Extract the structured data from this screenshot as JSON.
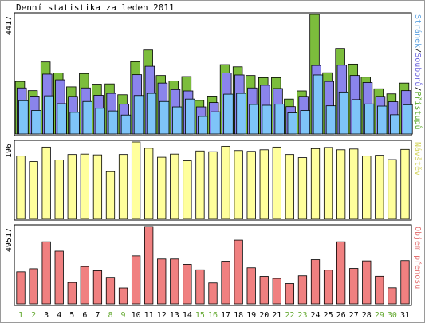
{
  "chart_data": {
    "type": "bar",
    "title": "Denní statistika za leden 2011",
    "categories": [
      "1",
      "2",
      "3",
      "4",
      "5",
      "6",
      "7",
      "8",
      "9",
      "10",
      "11",
      "12",
      "13",
      "14",
      "15",
      "16",
      "17",
      "18",
      "19",
      "20",
      "21",
      "22",
      "23",
      "24",
      "25",
      "26",
      "27",
      "28",
      "29",
      "30",
      "31"
    ],
    "weekend_days": [
      "1",
      "2",
      "8",
      "9",
      "15",
      "16",
      "22",
      "23",
      "29",
      "30"
    ],
    "colors": {
      "pristupu": "#7cbd3c",
      "souboru": "#8a84ec",
      "stranek": "#7ec4f8",
      "navstev": "#ffff9c",
      "objem": "#f08080",
      "weekday_label": "#000000",
      "weekend_label": "#66aa33",
      "bar_outline": "#000000"
    },
    "panels": [
      {
        "id": "top",
        "ymax_label": "4417",
        "ymax": 4417,
        "legend": [
          {
            "label": "Stránek",
            "color": "#5aa0e0"
          },
          {
            "label": "/",
            "color": "#000000"
          },
          {
            "label": "Souborů",
            "color": "#6a64dc"
          },
          {
            "label": "/",
            "color": "#000000"
          },
          {
            "label": "Přístupů",
            "color": "#5ca82c"
          }
        ],
        "series": [
          {
            "name": "Přístupů",
            "values": [
              1940,
              1600,
              2660,
              2250,
              1740,
              2230,
              1840,
              1850,
              1450,
              2670,
              3100,
              2160,
              1960,
              2120,
              1240,
              1400,
              2560,
              2480,
              2160,
              2080,
              2080,
              1290,
              1590,
              4417,
              2260,
              3160,
              2580,
              2100,
              1670,
              1480,
              1880
            ]
          },
          {
            "name": "Souborů",
            "values": [
              1700,
              1400,
              2210,
              2000,
              1390,
              1700,
              1430,
              1500,
              1100,
              2190,
              2500,
              1880,
              1640,
              1590,
              1000,
              1160,
              2250,
              2180,
              1700,
              1800,
              1680,
              1010,
              1390,
              2530,
              1940,
              2540,
              2160,
              1900,
              1390,
              1190,
              1600
            ]
          },
          {
            "name": "Stránek",
            "values": [
              1230,
              870,
              1410,
              1120,
              800,
              1200,
              950,
              850,
              700,
              1420,
              1500,
              1200,
              1000,
              1290,
              650,
              820,
              1470,
              1500,
              1090,
              1060,
              1100,
              780,
              870,
              2180,
              1040,
              1550,
              1270,
              1110,
              1030,
              710,
              1080
            ]
          }
        ]
      },
      {
        "id": "middle",
        "ymax_label": "196",
        "ymax": 196,
        "legend": [
          {
            "label": "Návštěv",
            "color": "#d4d460"
          }
        ],
        "series": [
          {
            "name": "Návštěv",
            "values": [
              160,
              146,
              183,
              150,
              164,
              165,
              163,
              120,
              164,
              196,
              180,
              157,
              165,
              148,
              173,
              171,
              185,
              174,
              172,
              176,
              183,
              164,
              156,
              179,
              182,
              176,
              178,
              160,
              162,
              151,
              177
            ]
          }
        ]
      },
      {
        "id": "bottom",
        "ymax_label": "49517",
        "ymax": 49517,
        "legend": [
          {
            "label": "Objem přenosu",
            "color": "#e27070"
          }
        ],
        "series": [
          {
            "name": "Objem přenosu",
            "values": [
              20500,
              22500,
              39700,
              33700,
              13700,
              23900,
              21200,
              17000,
              10200,
              30700,
              49517,
              28700,
              28700,
              25300,
              21800,
              13400,
              27300,
              40800,
              23100,
              17600,
              16300,
              13000,
              18000,
              28300,
              21600,
              39700,
              22700,
              27500,
              17700,
              10300,
              27700
            ]
          }
        ]
      }
    ]
  }
}
